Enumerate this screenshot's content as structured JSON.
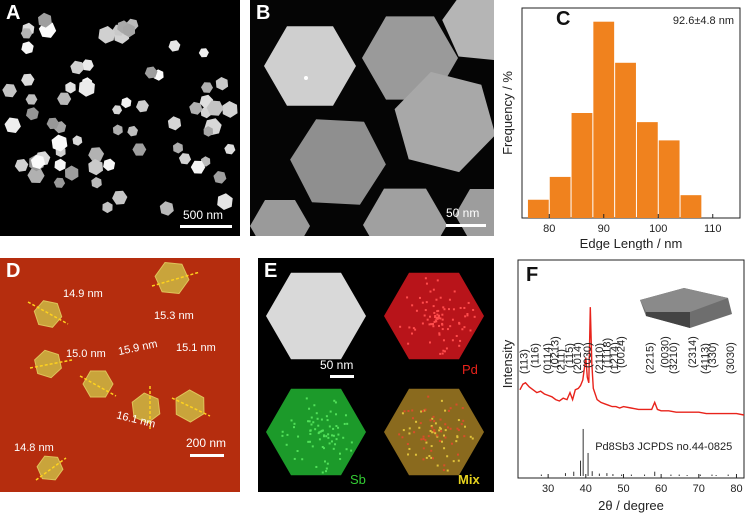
{
  "panels": {
    "A": {
      "label": "A",
      "scalebar": "500 nm"
    },
    "B": {
      "label": "B",
      "scalebar": "50 nm"
    },
    "C": {
      "label": "C"
    },
    "D": {
      "label": "D",
      "scalebar": "200 nm",
      "thicknesses": [
        "14.9 nm",
        "15.3 nm",
        "15.0 nm",
        "15.9 nm",
        "15.1 nm",
        "16.1 nm",
        "14.8 nm"
      ]
    },
    "E": {
      "label": "E",
      "scalebar": "50 nm",
      "map_labels": [
        "Pd",
        "Sb",
        "Mix"
      ]
    },
    "F": {
      "label": "F"
    }
  },
  "chart_data": [
    {
      "type": "bar",
      "panel": "C",
      "annotation": "92.6±4.8 nm",
      "xlabel": "Edge Length / nm",
      "ylabel": "Frequency / %",
      "x_ticks": [
        80,
        90,
        100,
        110
      ],
      "xlim": [
        75,
        115
      ],
      "bin_width": 4,
      "bin_centers": [
        78,
        82,
        86,
        90,
        94,
        98,
        102,
        106,
        110
      ],
      "values": [
        4,
        9,
        23,
        43,
        34,
        21,
        17,
        5,
        0
      ],
      "bar_color": "#f0821e"
    },
    {
      "type": "line",
      "panel": "F",
      "xlabel": "2θ / degree",
      "ylabel": "Intensity",
      "x_ticks": [
        30,
        40,
        50,
        60,
        70,
        80
      ],
      "xlim": [
        22,
        82
      ],
      "series": [
        {
          "name": "",
          "color": "#e8231b",
          "x": [
            22.5,
            23.3,
            24,
            25,
            26,
            27,
            28,
            29,
            30,
            31,
            32,
            33,
            34,
            35,
            35.8,
            36.5,
            37.2,
            38,
            38.6,
            39.2,
            39.6,
            40,
            40.4,
            40.8,
            41.2,
            41.6,
            42,
            42.5,
            43,
            44,
            45,
            46,
            47,
            48,
            49,
            50,
            52,
            54,
            56,
            57.5,
            58.3,
            59,
            60,
            62,
            64,
            66,
            68,
            70,
            72,
            74,
            76,
            78,
            80,
            82
          ],
          "y": [
            33,
            37,
            38,
            35,
            33,
            31,
            32,
            30,
            29,
            28,
            26,
            25,
            27,
            26,
            31,
            26,
            33,
            34,
            36,
            40,
            48,
            56,
            42,
            38,
            92,
            52,
            34,
            30,
            26,
            24,
            23,
            22,
            21,
            21,
            20,
            21,
            20,
            19,
            19,
            19,
            24,
            19,
            18,
            18,
            17,
            17,
            17,
            17,
            16,
            16,
            16,
            16,
            16,
            15
          ]
        }
      ],
      "reference": {
        "label": "Pd8Sb3 JCPDS no.44-0825",
        "sticks": [
          [
            28.2,
            3
          ],
          [
            34.6,
            6
          ],
          [
            36.8,
            9
          ],
          [
            38.6,
            32
          ],
          [
            39.3,
            98
          ],
          [
            40.6,
            48
          ],
          [
            41.7,
            10
          ],
          [
            43.6,
            5
          ],
          [
            45.6,
            6
          ],
          [
            47.2,
            4
          ],
          [
            49.5,
            3
          ],
          [
            52.1,
            3
          ],
          [
            55.6,
            3
          ],
          [
            58.3,
            9
          ],
          [
            62.6,
            3
          ],
          [
            64.8,
            3
          ],
          [
            66.9,
            2
          ],
          [
            70.4,
            3
          ],
          [
            73.5,
            3
          ],
          [
            74.6,
            2
          ],
          [
            77.8,
            3
          ]
        ]
      },
      "peak_labels": [
        {
          "text": "(113)",
          "x": 24.5
        },
        {
          "text": "(116)",
          "x": 27.4
        },
        {
          "text": "(0114)",
          "x": 30.8
        },
        {
          "text": "(0213)",
          "x": 32.7
        },
        {
          "text": "(211)",
          "x": 34.4
        },
        {
          "text": "(115)",
          "x": 36.6
        },
        {
          "text": "(2014)",
          "x": 38.7
        },
        {
          "text": "(030)",
          "x": 41.4
        },
        {
          "text": "(2110)",
          "x": 44.6
        },
        {
          "text": "(1118)",
          "x": 46.6
        },
        {
          "text": "(1214)",
          "x": 48.5
        },
        {
          "text": "(0024)",
          "x": 50.3
        },
        {
          "text": "(2215)",
          "x": 58.0
        },
        {
          "text": "(0030)",
          "x": 61.9
        },
        {
          "text": "(3210)",
          "x": 64.2
        },
        {
          "text": "(2314)",
          "x": 69.2
        },
        {
          "text": "(4113)",
          "x": 72.6
        },
        {
          "text": "(330)",
          "x": 74.6
        },
        {
          "text": "(3030)",
          "x": 79.4
        }
      ]
    }
  ]
}
